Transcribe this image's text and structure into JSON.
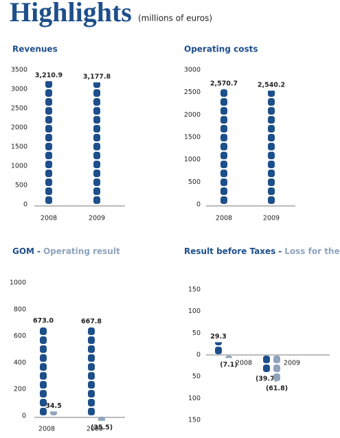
{
  "header": {
    "title": "Highlights",
    "subtitle": "(millions of euros)"
  },
  "chart_data": [
    {
      "type": "bar",
      "title": "Revenues",
      "categories": [
        "2008",
        "2009"
      ],
      "series": [
        {
          "color": "#1d4f8b",
          "values": [
            3210.9,
            3177.8
          ],
          "value_labels": [
            "3,210.9",
            "3,177.8"
          ]
        }
      ],
      "ylim": [
        0,
        3500
      ],
      "yticks": [
        0,
        500,
        1000,
        1500,
        2000,
        2500,
        3000,
        3500
      ]
    },
    {
      "type": "bar",
      "title": "Operating costs",
      "categories": [
        "2008",
        "2009"
      ],
      "series": [
        {
          "color": "#1d4f8b",
          "values": [
            2570.7,
            2540.2
          ],
          "value_labels": [
            "2,570.7",
            "2,540.2"
          ]
        }
      ],
      "ylim": [
        0,
        3000
      ],
      "yticks": [
        0,
        500,
        1000,
        1500,
        2000,
        2500,
        3000
      ]
    },
    {
      "type": "bar",
      "title_separator": "-",
      "categories": [
        "2008",
        "2009"
      ],
      "series": [
        {
          "name": "GOM",
          "color": "#1d4f8b",
          "values": [
            673.0,
            667.8
          ],
          "value_labels": [
            "673.0",
            "667.8"
          ]
        },
        {
          "name": "Operating result",
          "color": "#8fa3bd",
          "values": [
            34.5,
            -35.5
          ],
          "value_labels": [
            "34.5",
            "(35.5)"
          ]
        }
      ],
      "ylim": [
        0,
        1000
      ],
      "yticks": [
        0,
        200,
        400,
        600,
        800,
        1000
      ]
    },
    {
      "type": "bar",
      "title_separator": "-",
      "categories": [
        "2008",
        "2009"
      ],
      "series": [
        {
          "name": "Result before Taxes",
          "color": "#1d4f8b",
          "values": [
            29.3,
            -39.7
          ],
          "value_labels": [
            "29.3",
            "(39.7)"
          ]
        },
        {
          "name": "Loss for the year",
          "color": "#8fa3bd",
          "values": [
            -7.1,
            -61.8
          ],
          "value_labels": [
            "(7.1)",
            "(61.8)"
          ]
        }
      ],
      "ylim": [
        -150,
        150
      ],
      "yticks": [
        {
          "value": -150,
          "label": "150"
        },
        {
          "value": -100,
          "label": "100"
        },
        {
          "value": -50,
          "label": "50"
        },
        0,
        50,
        100,
        150
      ]
    }
  ]
}
